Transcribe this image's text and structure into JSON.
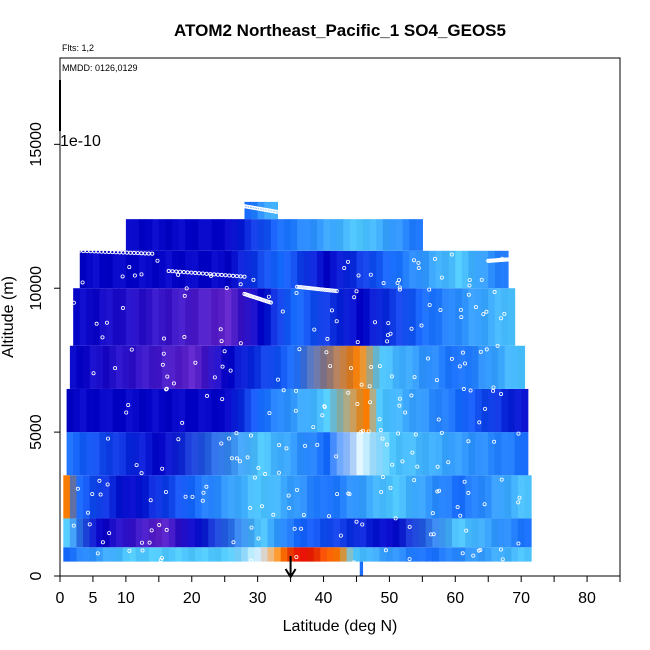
{
  "chart_data": {
    "type": "heatmap",
    "title": "ATOM2 Northeast_Pacific_1 SO4_GEOS5",
    "subtitle_flights": "Flts: 1,2",
    "subtitle_dates": "MMDD: 0126,0129",
    "xlabel": "Latitude (deg N)",
    "ylabel": "Altitude (m)",
    "xlim": [
      0,
      85
    ],
    "ylim": [
      0,
      18000
    ],
    "x_tick_labels": [
      "0",
      "5",
      "10",
      "20",
      "30",
      "40",
      "50",
      "60",
      "70",
      "80"
    ],
    "y_tick_labels": [
      "0",
      "5000",
      "10000",
      "15000"
    ],
    "colorbar_scale_label": "1e-10",
    "arrow_marker_latitude": 35,
    "colors": {
      "dark": "#0000c8",
      "mid": "#1a70ff",
      "light": "#40c0ff",
      "hot": "#ff8000",
      "peak": "#e00000",
      "purple": "#6020c0"
    },
    "altitude_bands": [
      {
        "alt": [
          0,
          500
        ],
        "lat": [
          45.5,
          46
        ],
        "level": "mid"
      },
      {
        "alt": [
          500,
          1000
        ],
        "lat": [
          0.5,
          71
        ],
        "profile": [
          [
            0.5,
            "mid"
          ],
          [
            10,
            "light"
          ],
          [
            25,
            "light"
          ],
          [
            30,
            "pale"
          ],
          [
            33,
            "hot"
          ],
          [
            36,
            "peak"
          ],
          [
            42,
            "hot"
          ],
          [
            44,
            "light"
          ],
          [
            55,
            "mid"
          ],
          [
            71,
            "light"
          ]
        ]
      },
      {
        "alt": [
          1000,
          2000
        ],
        "lat": [
          0.5,
          71
        ],
        "profile": [
          [
            0.5,
            "light"
          ],
          [
            5,
            "dark"
          ],
          [
            15,
            "purple"
          ],
          [
            20,
            "dark"
          ],
          [
            30,
            "light"
          ],
          [
            35,
            "mid"
          ],
          [
            50,
            "dark"
          ],
          [
            60,
            "light"
          ],
          [
            71,
            "mid"
          ]
        ]
      },
      {
        "alt": [
          2000,
          3500
        ],
        "lat": [
          0.5,
          71
        ],
        "profile": [
          [
            0.5,
            "hot"
          ],
          [
            2,
            "mid"
          ],
          [
            10,
            "dark"
          ],
          [
            20,
            "mid"
          ],
          [
            30,
            "light"
          ],
          [
            40,
            "mid"
          ],
          [
            50,
            "light"
          ],
          [
            60,
            "mid"
          ],
          [
            71,
            "light"
          ]
        ]
      },
      {
        "alt": [
          3500,
          5000
        ],
        "lat": [
          1,
          71
        ],
        "profile": [
          [
            1,
            "mid"
          ],
          [
            15,
            "dark"
          ],
          [
            30,
            "light"
          ],
          [
            40,
            "mid"
          ],
          [
            45,
            "pale"
          ],
          [
            50,
            "light"
          ],
          [
            71,
            "mid"
          ]
        ]
      },
      {
        "alt": [
          5000,
          6500
        ],
        "lat": [
          1,
          71
        ],
        "profile": [
          [
            1,
            "dark"
          ],
          [
            25,
            "dark"
          ],
          [
            30,
            "mid"
          ],
          [
            40,
            "light"
          ],
          [
            46,
            "hot"
          ],
          [
            48,
            "light"
          ],
          [
            60,
            "mid"
          ],
          [
            71,
            "dark"
          ]
        ]
      },
      {
        "alt": [
          6500,
          8000
        ],
        "lat": [
          1.5,
          70
        ],
        "profile": [
          [
            1.5,
            "dark"
          ],
          [
            20,
            "purple"
          ],
          [
            25,
            "dark"
          ],
          [
            35,
            "mid"
          ],
          [
            45,
            "hot"
          ],
          [
            48,
            "light"
          ],
          [
            60,
            "mid"
          ],
          [
            70,
            "light"
          ]
        ]
      },
      {
        "alt": [
          8000,
          10000
        ],
        "lat": [
          2,
          69
        ],
        "profile": [
          [
            2,
            "dark"
          ],
          [
            25,
            "purple"
          ],
          [
            30,
            "dark"
          ],
          [
            35,
            "mid"
          ],
          [
            45,
            "dark"
          ],
          [
            55,
            "mid"
          ],
          [
            69,
            "light"
          ]
        ]
      },
      {
        "alt": [
          10000,
          11300
        ],
        "lat": [
          3,
          68
        ],
        "profile": [
          [
            3,
            "dark"
          ],
          [
            25,
            "dark"
          ],
          [
            33,
            "mid"
          ],
          [
            40,
            "dark"
          ],
          [
            50,
            "mid"
          ],
          [
            60,
            "light"
          ],
          [
            68,
            "mid"
          ]
        ]
      },
      {
        "alt": [
          11300,
          12400
        ],
        "lat": [
          10,
          55
        ],
        "profile": [
          [
            10,
            "dark"
          ],
          [
            25,
            "dark"
          ],
          [
            33,
            "mid"
          ],
          [
            45,
            "light"
          ],
          [
            55,
            "mid"
          ]
        ]
      },
      {
        "alt": [
          12400,
          13000
        ],
        "lat": [
          28,
          33
        ],
        "profile": [
          [
            28,
            "mid"
          ],
          [
            33,
            "light"
          ]
        ]
      }
    ]
  }
}
